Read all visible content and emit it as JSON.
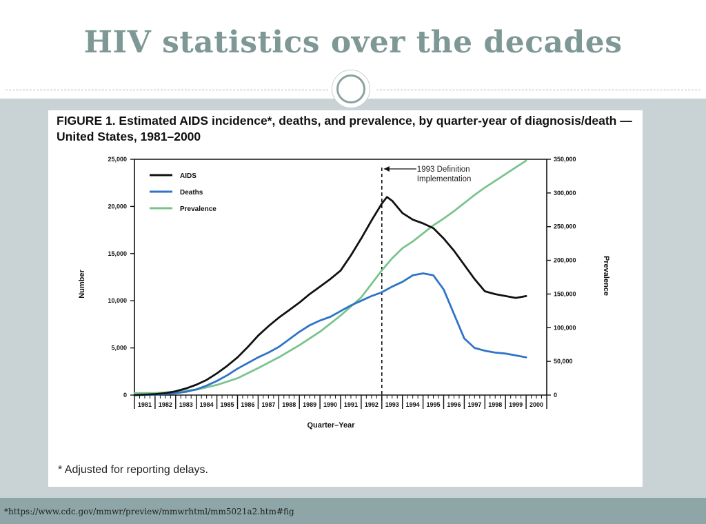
{
  "slide": {
    "title": "HIV statistics over the decades",
    "source": "*https://www.cdc.gov/mmwr/preview/mmwrhtml/mm5021a2.htm#fig"
  },
  "figure": {
    "title": "FIGURE 1. Estimated AIDS incidence*, deaths, and prevalence, by quarter-year of diagnosis/death — United States, 1981–2000",
    "footnote": "* Adjusted for reporting delays."
  },
  "colors": {
    "aids": "#111111",
    "deaths": "#2f74c7",
    "prevalence": "#79c48c",
    "accent": "#7e9895"
  },
  "chart_data": {
    "type": "line",
    "title": "Estimated AIDS incidence*, deaths, and prevalence, by quarter-year of diagnosis/death — United States, 1981–2000",
    "xlabel": "Quarter–Year",
    "ylabel": "Number",
    "y2label": "Prevalence",
    "xlim": [
      1981,
      2001
    ],
    "ylim": [
      0,
      25000
    ],
    "y2lim": [
      0,
      350000
    ],
    "y_ticks": [
      0,
      5000,
      10000,
      15000,
      20000,
      25000
    ],
    "y_tick_labels": [
      "0",
      "5,000",
      "10,000",
      "15,000",
      "20,000",
      "25,000"
    ],
    "y2_ticks": [
      0,
      50000,
      100000,
      150000,
      200000,
      250000,
      300000,
      350000
    ],
    "y2_tick_labels": [
      "0",
      "50,000",
      "100,000",
      "150,000",
      "200,000",
      "250,000",
      "300,000",
      "350,000"
    ],
    "x_tick_labels": [
      "1981",
      "1982",
      "1983",
      "1984",
      "1985",
      "1986",
      "1987",
      "1988",
      "1989",
      "1990",
      "1991",
      "1992",
      "1993",
      "1994",
      "1995",
      "1996",
      "1997",
      "1998",
      "1999",
      "2000"
    ],
    "legend": "top-left",
    "series": [
      {
        "name": "AIDS",
        "axis": "left",
        "x": [
          1981,
          1982,
          1982.5,
          1983,
          1983.5,
          1984,
          1984.5,
          1985,
          1985.5,
          1986,
          1986.5,
          1987,
          1987.5,
          1988,
          1988.5,
          1989,
          1989.5,
          1990,
          1990.5,
          1991,
          1991.5,
          1992,
          1992.5,
          1993,
          1993.25,
          1993.5,
          1994,
          1994.5,
          1995,
          1995.5,
          1996,
          1996.5,
          1997,
          1997.5,
          1998,
          1998.5,
          1999,
          1999.5,
          2000
        ],
        "y": [
          0,
          100,
          200,
          400,
          700,
          1100,
          1600,
          2300,
          3100,
          4000,
          5100,
          6300,
          7300,
          8200,
          9000,
          9800,
          10700,
          11500,
          12300,
          13200,
          14800,
          16600,
          18500,
          20300,
          21000,
          20600,
          19300,
          18600,
          18200,
          17700,
          16600,
          15300,
          13800,
          12300,
          11000,
          10700,
          10500,
          10300,
          10500
        ]
      },
      {
        "name": "Deaths",
        "axis": "left",
        "x": [
          1981,
          1982,
          1982.5,
          1983,
          1983.5,
          1984,
          1984.5,
          1985,
          1985.5,
          1986,
          1986.5,
          1987,
          1987.5,
          1988,
          1988.5,
          1989,
          1989.5,
          1990,
          1990.5,
          1991,
          1991.5,
          1992,
          1992.5,
          1993,
          1993.5,
          1994,
          1994.5,
          1995,
          1995.5,
          1996,
          1996.5,
          1997,
          1997.5,
          1998,
          1998.5,
          1999,
          1999.5,
          2000
        ],
        "y": [
          0,
          50,
          100,
          200,
          350,
          600,
          1000,
          1500,
          2100,
          2800,
          3400,
          4000,
          4500,
          5100,
          5900,
          6700,
          7400,
          7900,
          8300,
          8900,
          9500,
          10000,
          10500,
          10900,
          11500,
          12000,
          12700,
          12900,
          12700,
          11200,
          8600,
          6000,
          5000,
          4700,
          4500,
          4400,
          4200,
          4000
        ]
      },
      {
        "name": "Prevalence",
        "axis": "right",
        "x": [
          1981,
          1982,
          1983,
          1984,
          1985,
          1986,
          1987,
          1988,
          1989,
          1990,
          1991,
          1992,
          1992.5,
          1993,
          1993.5,
          1994,
          1994.5,
          1995,
          1995.5,
          1996,
          1996.5,
          1997,
          1997.5,
          1998,
          1998.5,
          1999,
          1999.5,
          2000
        ],
        "y": [
          3000,
          3000,
          5000,
          8000,
          15000,
          25000,
          40000,
          56000,
          74000,
          94000,
          118000,
          145000,
          165000,
          185000,
          203000,
          218000,
          228000,
          240000,
          252000,
          262000,
          273000,
          285000,
          297000,
          308000,
          318000,
          328000,
          338000,
          348000
        ]
      }
    ],
    "annotations": [
      {
        "x": 1993,
        "text_lines": [
          "1993 Definition",
          "Implementation"
        ],
        "style": "dashed-vertical-line"
      }
    ]
  }
}
